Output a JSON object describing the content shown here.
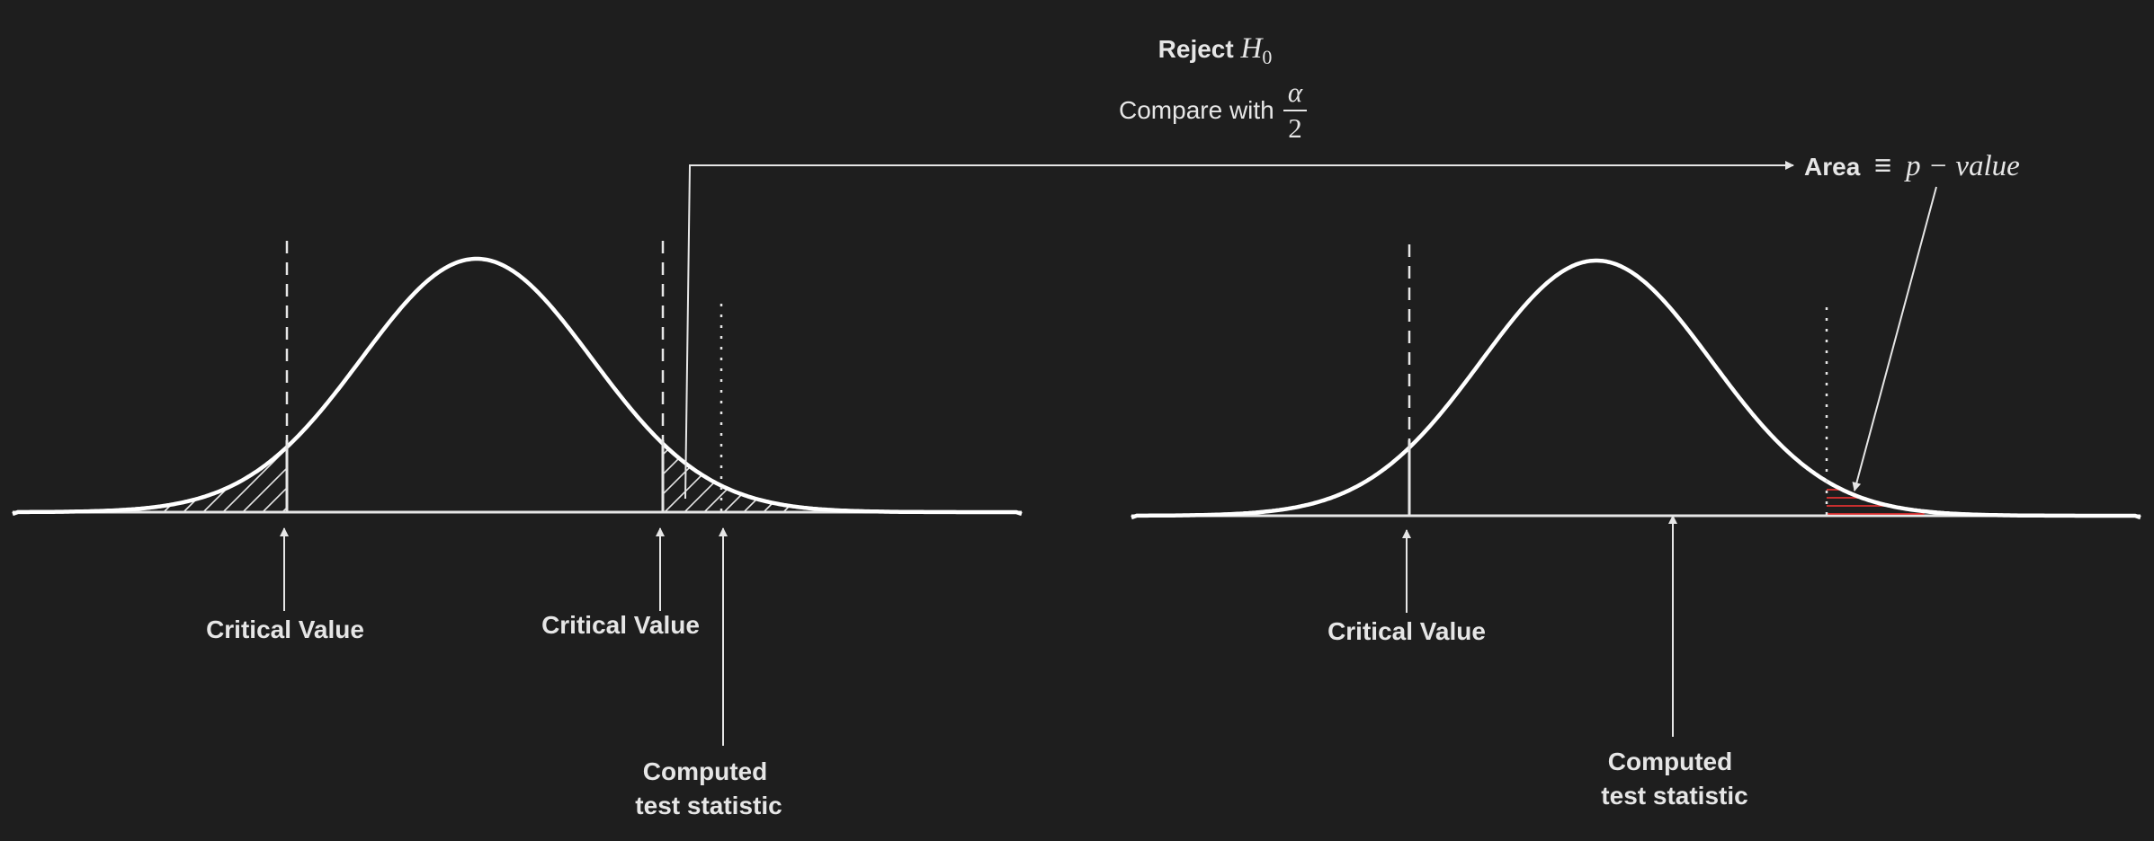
{
  "colors": {
    "background": "#1e1e1e",
    "stroke": "#ffffff",
    "text": "#e6e6e6",
    "hatch_left": "#e6e6e6",
    "hatch_right": "#e03030"
  },
  "header": {
    "reject_word": "Reject",
    "reject_symbol": "H",
    "reject_subscript": "0",
    "compare_text": "Compare with",
    "frac_numerator": "α",
    "frac_denominator": "2"
  },
  "area_label": {
    "word": "Area",
    "equiv": "≡",
    "expr": "p − value"
  },
  "left_plot": {
    "critical_left": "Critical Value",
    "critical_right": "Critical Value",
    "computed_line1": "Computed",
    "computed_line2": "test statistic"
  },
  "right_plot": {
    "critical": "Critical Value",
    "computed_line1": "Computed",
    "computed_line2": "test statistic"
  }
}
